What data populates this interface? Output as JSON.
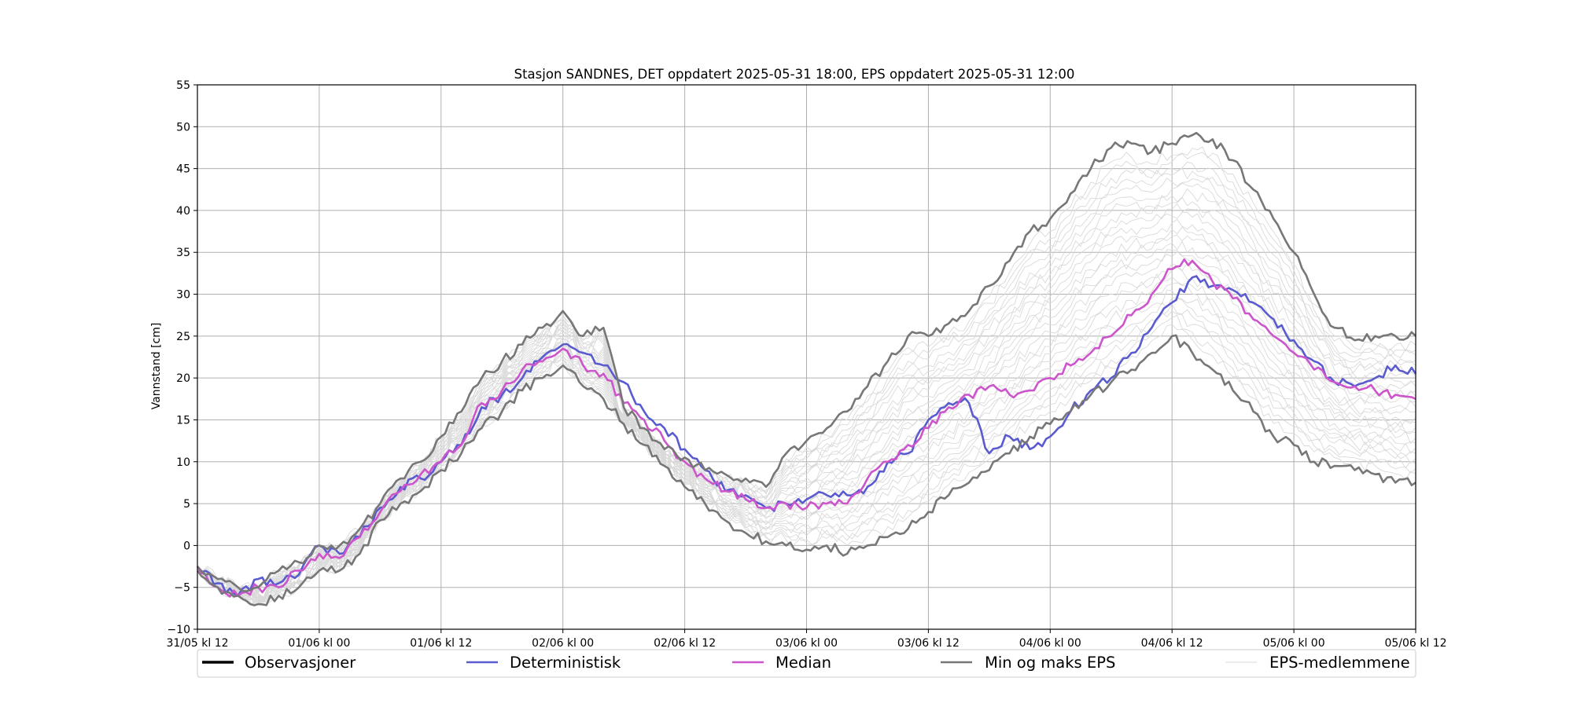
{
  "chart_data": {
    "type": "line",
    "title": "Stasjon SANDNES, DET oppdatert 2025-05-31 18:00, EPS oppdatert 2025-05-31 12:00",
    "xlabel": "",
    "ylabel": "Vannstand [cm]",
    "ylim": [
      -10,
      55
    ],
    "xlim": [
      0,
      120
    ],
    "x_unit": "hours since 31/05 kl 12",
    "xtick_labels": [
      "31/05 kl 12",
      "01/06 kl 00",
      "01/06 kl 12",
      "02/06 kl 00",
      "02/06 kl 12",
      "03/06 kl 00",
      "03/06 kl 12",
      "04/06 kl 00",
      "04/06 kl 12",
      "05/06 kl 00",
      "05/06 kl 12"
    ],
    "xtick_hours": [
      0,
      12,
      24,
      36,
      48,
      60,
      72,
      84,
      96,
      108,
      120
    ],
    "yticks": [
      -10,
      -5,
      0,
      5,
      10,
      15,
      20,
      25,
      30,
      35,
      40,
      45,
      50,
      55
    ],
    "grid": true,
    "legend_position": "bottom",
    "legend": [
      {
        "label": "Observasjoner",
        "color": "#000000"
      },
      {
        "label": "Deterministisk",
        "color": "#5b5bd0"
      },
      {
        "label": "Median",
        "color": "#cc55cc"
      },
      {
        "label": "Min og maks EPS",
        "color": "#777777"
      },
      {
        "label": "EPS-medlemmene",
        "color": "#d9d9d9"
      }
    ],
    "series": [
      {
        "name": "Observasjoner",
        "color": "#000000",
        "x": [],
        "y": []
      },
      {
        "name": "Deterministisk",
        "color": "#5b5bd0",
        "x": [
          0,
          2,
          4,
          6,
          8,
          10,
          12,
          14,
          16,
          18,
          20,
          22,
          24,
          26,
          28,
          30,
          32,
          34,
          36,
          38,
          40,
          42,
          44,
          46,
          48,
          50,
          52,
          54,
          56,
          58,
          60,
          62,
          64,
          66,
          68,
          70,
          72,
          74,
          76,
          78,
          80,
          82,
          84,
          86,
          88,
          90,
          92,
          94,
          96,
          98,
          100,
          102,
          104,
          106,
          108,
          110,
          112,
          114,
          116,
          118,
          120
        ],
        "y": [
          -2.5,
          -4.5,
          -6,
          -4,
          -4.5,
          -3.5,
          0,
          -1,
          1,
          4.5,
          7,
          8,
          10,
          12,
          16.5,
          18,
          20,
          22.5,
          24,
          23,
          21.5,
          19.5,
          16,
          14,
          11.5,
          9,
          6.5,
          6,
          4.5,
          5,
          5.5,
          6,
          6,
          7,
          10,
          11,
          15,
          17,
          17,
          11,
          13,
          11.5,
          13,
          16,
          18.5,
          20,
          23,
          26,
          29,
          32,
          31,
          30.5,
          29,
          27,
          24.5,
          22,
          19.5,
          19,
          20,
          21.5,
          20.5
        ]
      },
      {
        "name": "Median",
        "color": "#cc55cc",
        "x": [
          0,
          2,
          4,
          6,
          8,
          10,
          12,
          14,
          16,
          18,
          20,
          22,
          24,
          26,
          28,
          30,
          32,
          34,
          36,
          38,
          40,
          42,
          44,
          46,
          48,
          50,
          52,
          54,
          56,
          58,
          60,
          62,
          64,
          66,
          68,
          70,
          72,
          74,
          76,
          78,
          80,
          82,
          84,
          86,
          88,
          90,
          92,
          94,
          96,
          98,
          100,
          102,
          104,
          106,
          108,
          110,
          112,
          114,
          116,
          118,
          120
        ],
        "y": [
          -2.5,
          -5,
          -6,
          -5,
          -5,
          -3,
          -1,
          -1.5,
          1,
          4,
          6.5,
          8.5,
          10,
          12,
          17,
          18.5,
          21,
          22,
          23.5,
          21.5,
          20.5,
          17,
          15,
          12.5,
          10,
          8,
          6.5,
          5.5,
          4.5,
          5,
          4.5,
          5,
          5,
          8,
          10,
          12,
          14,
          16.5,
          18,
          19,
          18,
          18.5,
          20,
          21.5,
          23,
          25,
          27.5,
          30,
          33,
          34,
          31.5,
          29.5,
          27,
          25,
          23,
          21,
          19.5,
          19,
          18.5,
          18,
          17.5
        ]
      },
      {
        "name": "Min og maks EPS",
        "role": "min",
        "color": "#777777",
        "x": [
          0,
          2,
          4,
          6,
          8,
          10,
          12,
          14,
          16,
          18,
          20,
          22,
          24,
          26,
          28,
          30,
          32,
          34,
          36,
          38,
          40,
          42,
          44,
          46,
          48,
          50,
          52,
          54,
          56,
          58,
          60,
          62,
          64,
          66,
          68,
          70,
          72,
          74,
          76,
          78,
          80,
          82,
          84,
          86,
          88,
          90,
          92,
          94,
          96,
          98,
          100,
          102,
          104,
          106,
          108,
          110,
          112,
          114,
          116,
          118,
          120
        ],
        "y": [
          -3,
          -5,
          -6,
          -7,
          -6,
          -5,
          -3,
          -3,
          -1,
          3,
          5,
          6.5,
          9,
          11,
          14,
          16,
          18.5,
          20,
          21.5,
          19,
          17.5,
          14.5,
          12,
          9.5,
          7,
          5,
          3,
          1.5,
          0.5,
          0,
          -0.5,
          0,
          -1,
          0,
          1,
          2,
          4,
          6,
          7.5,
          9,
          11,
          13,
          14.5,
          16,
          18,
          19.5,
          21,
          23,
          25,
          23,
          21,
          18.5,
          16,
          13,
          12,
          10,
          9.5,
          9,
          8.5,
          7.5,
          7.5
        ]
      },
      {
        "name": "Min og maks EPS",
        "role": "max",
        "color": "#777777",
        "x": [
          0,
          2,
          4,
          6,
          8,
          10,
          12,
          14,
          16,
          18,
          20,
          22,
          24,
          26,
          28,
          30,
          32,
          34,
          36,
          38,
          40,
          42,
          44,
          46,
          48,
          50,
          52,
          54,
          56,
          58,
          60,
          62,
          64,
          66,
          68,
          70,
          72,
          74,
          76,
          78,
          80,
          82,
          84,
          86,
          88,
          90,
          92,
          94,
          96,
          98,
          100,
          102,
          104,
          106,
          108,
          110,
          112,
          114,
          116,
          118,
          120
        ],
        "y": [
          -2.5,
          -4,
          -5,
          -5,
          -3,
          -2,
          0,
          0,
          2,
          5,
          8,
          10,
          13,
          16,
          20,
          22,
          24,
          26,
          28,
          25,
          26,
          16.5,
          14,
          11.5,
          10.5,
          9,
          8.5,
          8,
          7,
          11,
          12.5,
          14,
          16,
          19,
          22,
          25,
          25,
          26.5,
          28,
          31,
          34,
          37.5,
          39,
          42,
          45,
          47.5,
          48,
          47,
          48,
          49,
          48.5,
          46,
          42.5,
          39,
          35,
          30,
          26,
          24.5,
          25,
          25,
          25
        ]
      }
    ]
  }
}
